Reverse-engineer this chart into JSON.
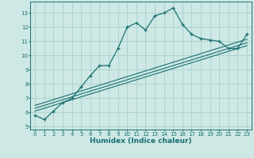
{
  "xlabel": "Humidex (Indice chaleur)",
  "background_color": "#cde8e5",
  "grid_color": "#aacfcc",
  "line_color": "#1a7070",
  "xlim": [
    -0.5,
    23.5
  ],
  "ylim": [
    4.8,
    13.8
  ],
  "yticks": [
    5,
    6,
    7,
    8,
    9,
    10,
    11,
    12,
    13
  ],
  "xticks": [
    0,
    1,
    2,
    3,
    4,
    5,
    6,
    7,
    8,
    9,
    10,
    11,
    12,
    13,
    14,
    15,
    16,
    17,
    18,
    19,
    20,
    21,
    22,
    23
  ],
  "curve1_x": [
    0,
    1,
    2,
    3,
    4,
    5,
    6,
    7,
    8,
    9,
    10,
    11,
    12,
    13,
    14,
    15,
    16,
    17,
    18,
    19,
    20,
    21,
    22,
    23
  ],
  "curve1_y": [
    5.8,
    5.5,
    6.1,
    6.7,
    7.0,
    7.8,
    8.6,
    9.3,
    9.3,
    10.5,
    12.0,
    12.3,
    11.8,
    12.8,
    13.0,
    13.35,
    12.2,
    11.5,
    11.2,
    11.1,
    11.0,
    10.5,
    10.5,
    11.5
  ],
  "curve2_x": [
    0,
    23
  ],
  "curve2_y": [
    6.1,
    10.7
  ],
  "curve3_x": [
    0,
    23
  ],
  "curve3_y": [
    6.3,
    10.9
  ],
  "curve4_x": [
    0,
    23
  ],
  "curve4_y": [
    6.5,
    11.15
  ]
}
